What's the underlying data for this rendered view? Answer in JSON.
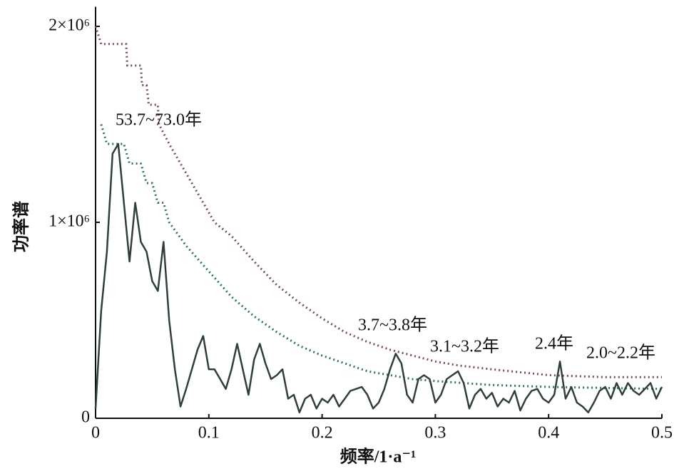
{
  "chart_data": {
    "type": "line",
    "xlabel": "频率/1·a⁻¹",
    "ylabel": "功率谱",
    "xlim": [
      0,
      0.5
    ],
    "xticks": [
      0,
      0.1,
      0.2,
      0.3,
      0.4,
      0.5
    ],
    "ylim": [
      0,
      2100000.0
    ],
    "yticks": [
      0,
      {
        "value": 1000000.0,
        "label": "1×10⁶"
      },
      {
        "value": 2000000.0,
        "label": "2×10⁶"
      }
    ],
    "annotations": [
      "53.7~73.0年",
      "3.7~3.8年",
      "3.1~3.2年",
      "2.4年",
      "2.0~2.2年"
    ],
    "series": [
      {
        "color": "#7a4a6a",
        "dash": "dotted",
        "x": [
          0,
          0.005,
          0.027,
          0.028,
          0.04,
          0.041,
          0.045,
          0.047,
          0.055,
          0.056,
          0.065,
          0.075,
          0.085,
          0.095,
          0.105,
          0.12,
          0.14,
          0.16,
          0.18,
          0.2,
          0.22,
          0.24,
          0.26,
          0.28,
          0.3,
          0.32,
          0.35,
          0.4,
          0.45,
          0.5
        ],
        "values": [
          2000000.0,
          1910000.0,
          1910000.0,
          1800000.0,
          1800000.0,
          1700000.0,
          1700000.0,
          1600000.0,
          1600000.0,
          1500000.0,
          1400000.0,
          1300000.0,
          1200000.0,
          1100000.0,
          1000000.0,
          930000.0,
          800000.0,
          680000.0,
          590000.0,
          510000.0,
          440000.0,
          390000.0,
          350000.0,
          320000.0,
          290000.0,
          270000.0,
          250000.0,
          220000.0,
          210000.0,
          210000.0
        ]
      },
      {
        "color": "#2a7a4a",
        "dash": "dotted",
        "x": [
          0.005,
          0.01,
          0.025,
          0.03,
          0.04,
          0.045,
          0.05,
          0.055,
          0.06,
          0.065,
          0.08,
          0.1,
          0.12,
          0.14,
          0.16,
          0.18,
          0.2,
          0.22,
          0.24,
          0.26,
          0.28,
          0.3,
          0.35,
          0.4,
          0.45,
          0.5
        ],
        "values": [
          1500000.0,
          1400000.0,
          1400000.0,
          1300000.0,
          1300000.0,
          1200000.0,
          1200000.0,
          1100000.0,
          1100000.0,
          1000000.0,
          880000.0,
          750000.0,
          620000.0,
          520000.0,
          440000.0,
          370000.0,
          320000.0,
          280000.0,
          240000.0,
          220000.0,
          200000.0,
          190000.0,
          170000.0,
          160000.0,
          155000.0,
          150000.0
        ]
      },
      {
        "color": "#2f3f3a",
        "dash": "solid",
        "x": [
          0,
          0.005,
          0.01,
          0.015,
          0.02,
          0.025,
          0.03,
          0.035,
          0.04,
          0.045,
          0.05,
          0.055,
          0.06,
          0.065,
          0.07,
          0.075,
          0.08,
          0.085,
          0.09,
          0.095,
          0.1,
          0.105,
          0.11,
          0.115,
          0.12,
          0.125,
          0.13,
          0.135,
          0.14,
          0.145,
          0.15,
          0.155,
          0.16,
          0.165,
          0.17,
          0.175,
          0.18,
          0.185,
          0.19,
          0.195,
          0.2,
          0.205,
          0.21,
          0.215,
          0.22,
          0.225,
          0.23,
          0.235,
          0.24,
          0.245,
          0.25,
          0.255,
          0.26,
          0.265,
          0.27,
          0.275,
          0.28,
          0.285,
          0.29,
          0.295,
          0.3,
          0.305,
          0.31,
          0.315,
          0.32,
          0.325,
          0.33,
          0.335,
          0.34,
          0.345,
          0.35,
          0.355,
          0.36,
          0.365,
          0.37,
          0.375,
          0.38,
          0.385,
          0.39,
          0.395,
          0.4,
          0.405,
          0.41,
          0.415,
          0.42,
          0.425,
          0.43,
          0.435,
          0.44,
          0.445,
          0.45,
          0.455,
          0.46,
          0.465,
          0.47,
          0.475,
          0.48,
          0.485,
          0.49,
          0.495,
          0.5
        ],
        "values": [
          50000.0,
          550000.0,
          850000.0,
          1350000.0,
          1400000.0,
          1100000.0,
          800000.0,
          1100000.0,
          900000.0,
          850000.0,
          700000.0,
          650000.0,
          900000.0,
          500000.0,
          250000.0,
          60000.0,
          150000.0,
          250000.0,
          350000.0,
          420000.0,
          250000.0,
          250000.0,
          200000.0,
          150000.0,
          250000.0,
          380000.0,
          250000.0,
          120000.0,
          300000.0,
          380000.0,
          280000.0,
          200000.0,
          220000.0,
          250000.0,
          100000.0,
          120000.0,
          30000.0,
          100000.0,
          120000.0,
          50000.0,
          100000.0,
          80000.0,
          120000.0,
          60000.0,
          100000.0,
          140000.0,
          150000.0,
          160000.0,
          120000.0,
          50000.0,
          80000.0,
          150000.0,
          250000.0,
          330000.0,
          280000.0,
          120000.0,
          80000.0,
          200000.0,
          220000.0,
          200000.0,
          80000.0,
          120000.0,
          200000.0,
          220000.0,
          240000.0,
          180000.0,
          50000.0,
          120000.0,
          150000.0,
          100000.0,
          130000.0,
          60000.0,
          100000.0,
          80000.0,
          140000.0,
          40000.0,
          100000.0,
          140000.0,
          150000.0,
          100000.0,
          80000.0,
          120000.0,
          290000.0,
          100000.0,
          160000.0,
          80000.0,
          60000.0,
          30000.0,
          80000.0,
          140000.0,
          160000.0,
          100000.0,
          180000.0,
          120000.0,
          180000.0,
          140000.0,
          120000.0,
          150000.0,
          180000.0,
          100000.0,
          160000.0
        ]
      }
    ]
  }
}
